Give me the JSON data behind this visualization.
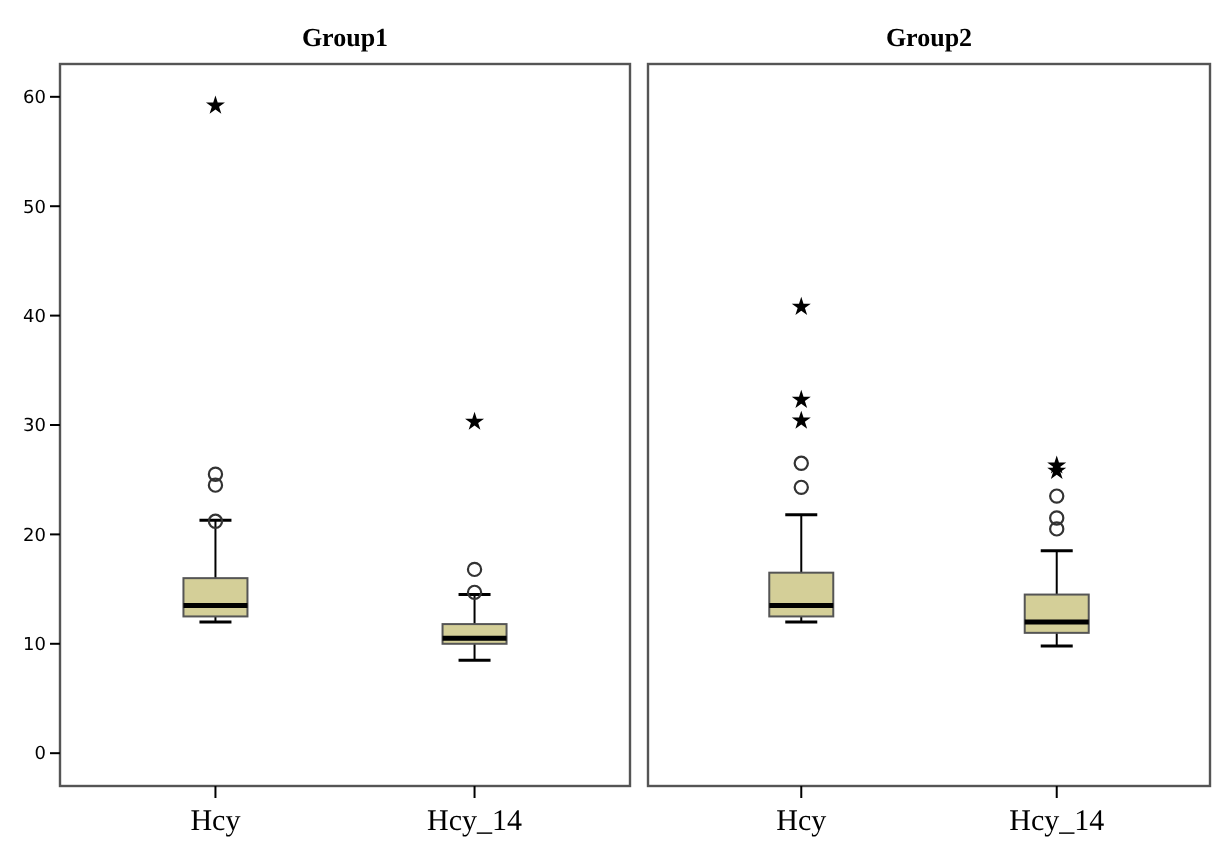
{
  "chart_data": [
    {
      "type": "box",
      "title": "Group1",
      "categories": [
        "Hcy",
        "Hcy_14"
      ],
      "ylim": [
        -3,
        63
      ],
      "yticks": [
        0,
        10,
        20,
        30,
        40,
        50,
        60
      ],
      "series": [
        {
          "color": "#d4cf98",
          "boxes": [
            {
              "low": 12,
              "q1": 12.5,
              "median": 13.5,
              "q3": 16,
              "high": 21.3,
              "outliers": [
                21.2,
                24.5,
                25.5
              ]
            },
            {
              "low": 8.5,
              "q1": 10,
              "median": 10.5,
              "q3": 11.8,
              "high": 14.5,
              "outliers": [
                14.7,
                16.8
              ]
            }
          ]
        },
        {
          "type": "scatter",
          "marker": "star",
          "color": "#000000",
          "x": [
            "Hcy",
            "Hcy_14"
          ],
          "values": [
            59.2,
            30.3
          ]
        }
      ]
    },
    {
      "type": "box",
      "title": "Group2",
      "categories": [
        "Hcy",
        "Hcy_14"
      ],
      "ylim": [
        -3,
        63
      ],
      "yticks": [
        0,
        10,
        20,
        30,
        40,
        50,
        60
      ],
      "tick_labels": "x",
      "series": [
        {
          "color": "#d4cf98",
          "boxes": [
            {
              "low": 12,
              "q1": 12.5,
              "median": 13.5,
              "q3": 16.5,
              "high": 21.8,
              "outliers": [
                24.3,
                26.5
              ]
            },
            {
              "low": 9.8,
              "q1": 11,
              "median": 12,
              "q3": 14.5,
              "high": 18.5,
              "outliers": [
                20.5,
                21.5,
                23.5
              ]
            }
          ]
        },
        {
          "type": "scatter",
          "marker": "star",
          "color": "#000000",
          "x": [
            "Hcy",
            "Hcy",
            "Hcy",
            "Hcy_14",
            "Hcy_14"
          ],
          "values": [
            40.8,
            32.3,
            30.4,
            25.8,
            26.3
          ]
        }
      ]
    }
  ]
}
